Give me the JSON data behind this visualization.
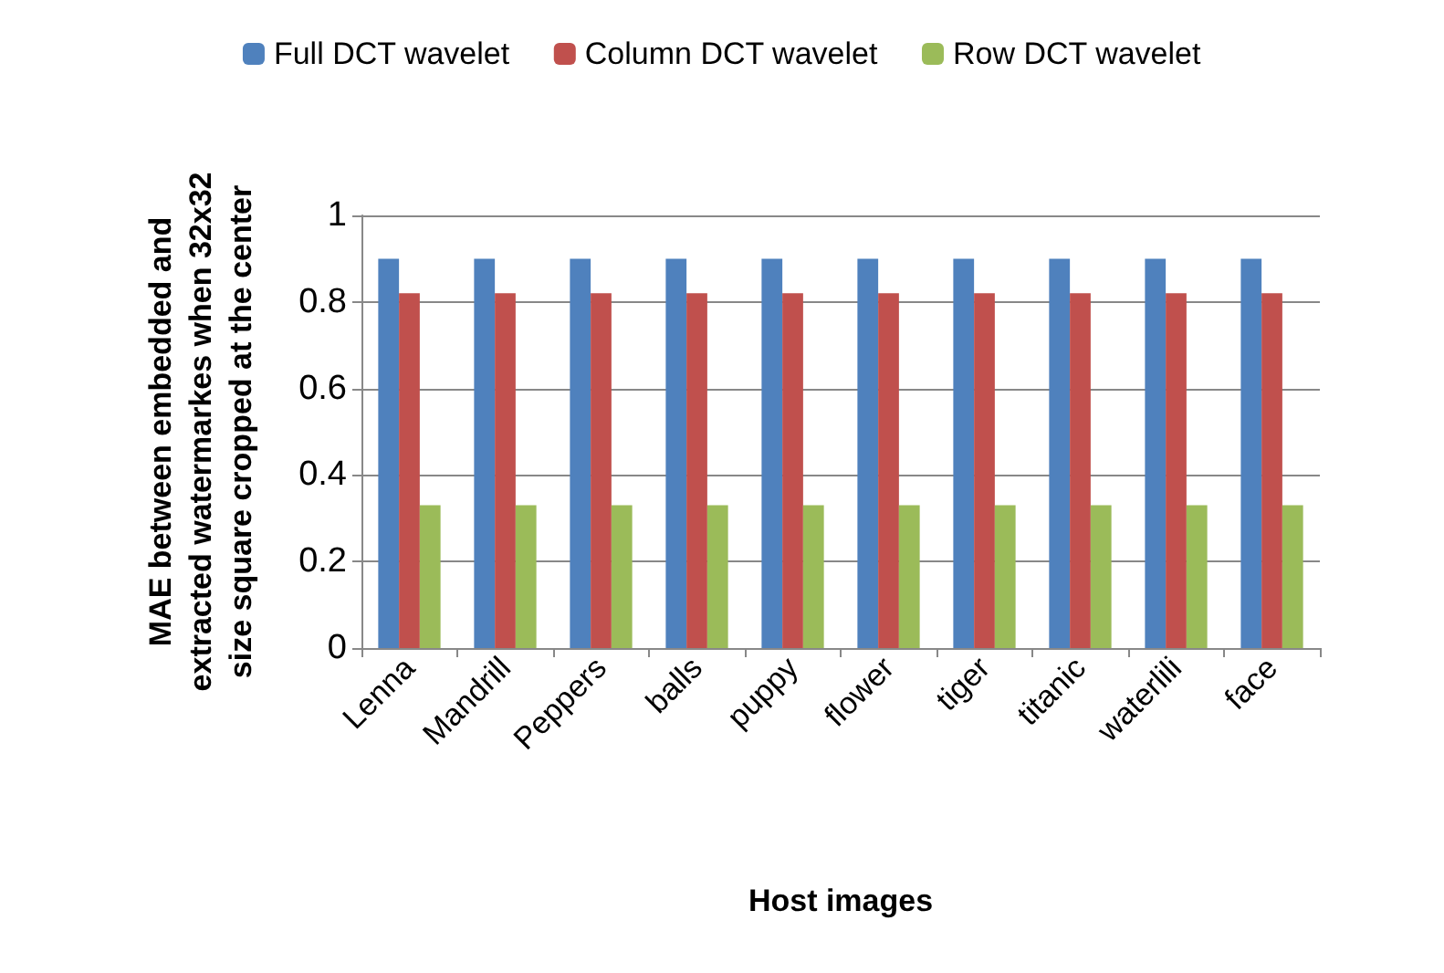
{
  "chart_data": {
    "type": "bar",
    "xlabel": "Host images",
    "ylabel": "MAE between embedded and\nextracted watermarkes when 32x32\nsize square cropped at the center",
    "categories": [
      "Lenna",
      "Mandrill",
      "Peppers",
      "balls",
      "puppy",
      "flower",
      "tiger",
      "titanic",
      "waterlili",
      "face"
    ],
    "series": [
      {
        "name": "Full DCT wavelet",
        "color": "#4f81bd",
        "values": [
          0.9,
          0.9,
          0.9,
          0.9,
          0.9,
          0.9,
          0.9,
          0.9,
          0.9,
          0.9
        ]
      },
      {
        "name": "Column DCT wavelet",
        "color": "#c0504d",
        "values": [
          0.82,
          0.82,
          0.82,
          0.82,
          0.82,
          0.82,
          0.82,
          0.82,
          0.82,
          0.82
        ]
      },
      {
        "name": "Row DCT wavelet",
        "color": "#9bbb59",
        "values": [
          0.33,
          0.33,
          0.33,
          0.33,
          0.33,
          0.33,
          0.33,
          0.33,
          0.33,
          0.33
        ]
      }
    ],
    "ylim": [
      0,
      1
    ],
    "yticks": [
      0,
      0.2,
      0.4,
      0.6,
      0.8,
      1
    ],
    "grid": "y",
    "legend": "top"
  }
}
